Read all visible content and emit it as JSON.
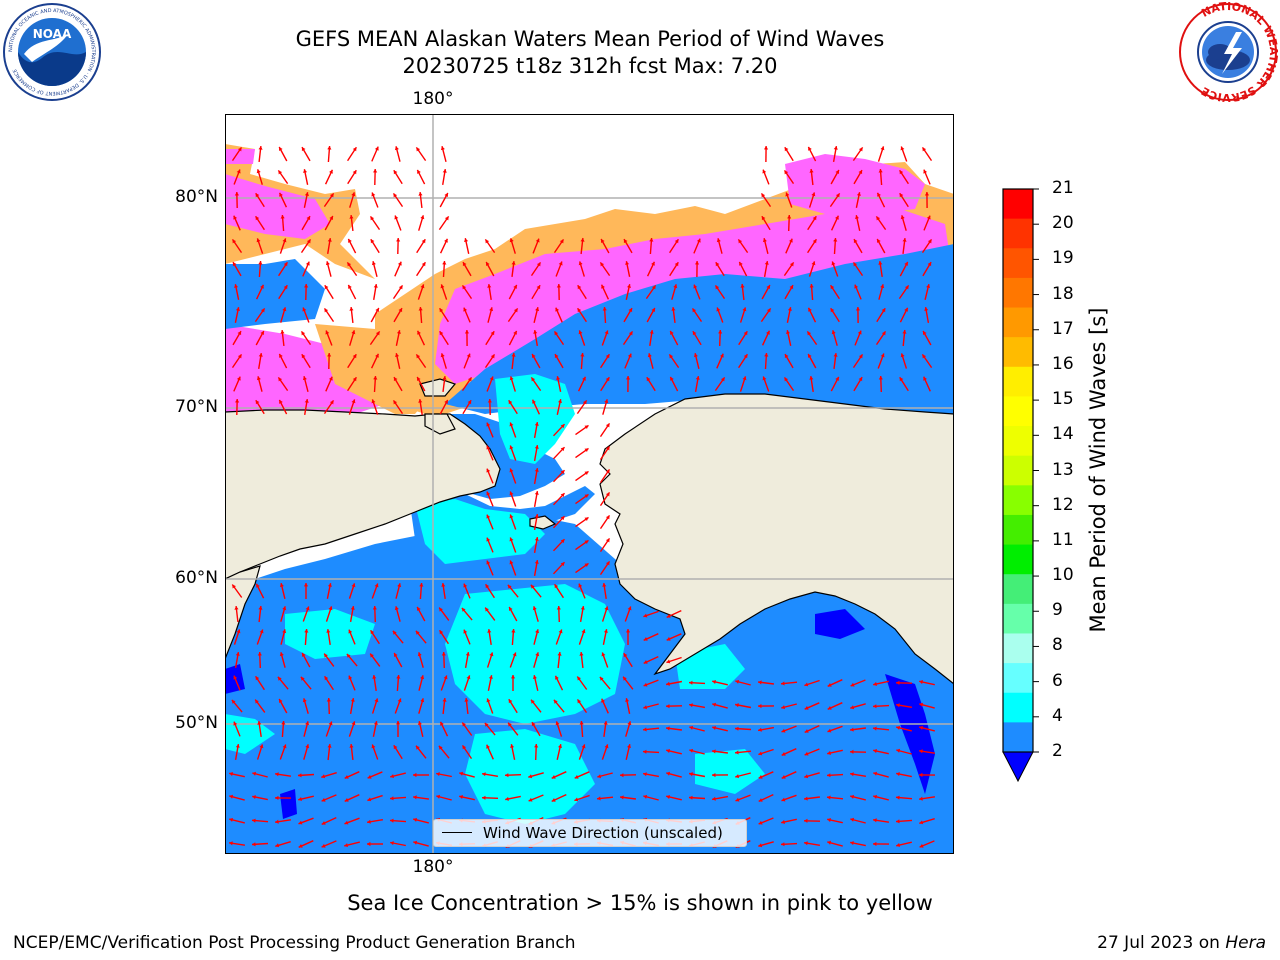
{
  "header": {
    "title_line1": "GEFS MEAN Alaskan Waters Mean Period of Wind Waves",
    "title_line2": "20230725 t18z 312h fcst   Max: 7.20"
  },
  "logos": {
    "left": {
      "icon": "noaa-logo",
      "text": "NOAA",
      "ring_text": "NATIONAL OCEANIC AND ATMOSPHERIC ADMINISTRATION · U.S. DEPARTMENT OF COMMERCE"
    },
    "right": {
      "icon": "nws-logo",
      "ring_text": "NATIONAL WEATHER SERVICE"
    }
  },
  "map": {
    "lon_label_top": "180°",
    "lon_label_bottom": "180°",
    "lat_labels": [
      "80°N",
      "70°N",
      "60°N",
      "50°N"
    ],
    "legend_label": "Wind Wave Direction (unscaled)",
    "colors": {
      "land": "#efecdc",
      "sea_2_4": "#1e8cff",
      "sea_4_6": "#00ffff",
      "sea_lt_2": "#0000ff",
      "ice_pink": "#ff66ff",
      "ice_orange": "#ffb85a",
      "ice_yellow": "#ffd24a",
      "arrows": "#ff0000",
      "grid": "#b0b0b0"
    }
  },
  "colorbar": {
    "ticks": [
      "21",
      "20",
      "19",
      "18",
      "17",
      "16",
      "15",
      "14",
      "13",
      "12",
      "11",
      "10",
      "9",
      "8",
      "6",
      "4",
      "2"
    ],
    "label": "Mean Period of Wind Waves [s]",
    "colors": [
      "#ff0000",
      "#ff3300",
      "#ff5500",
      "#ff7700",
      "#ff9900",
      "#ffbb00",
      "#ffee00",
      "#ffff00",
      "#eeff00",
      "#ccff00",
      "#88ff00",
      "#44ee00",
      "#00ee00",
      "#44ee77",
      "#66ffaa",
      "#aaffee",
      "#66ffff",
      "#00ffff",
      "#1e8cff"
    ],
    "under_color": "#0000ff"
  },
  "footer": {
    "note": "Sea Ice Concentration > 15% is shown in pink to yellow",
    "left": "NCEP/EMC/Verification Post Processing Product Generation Branch",
    "date": "27 Jul 2023 on ",
    "host": "Hera"
  }
}
